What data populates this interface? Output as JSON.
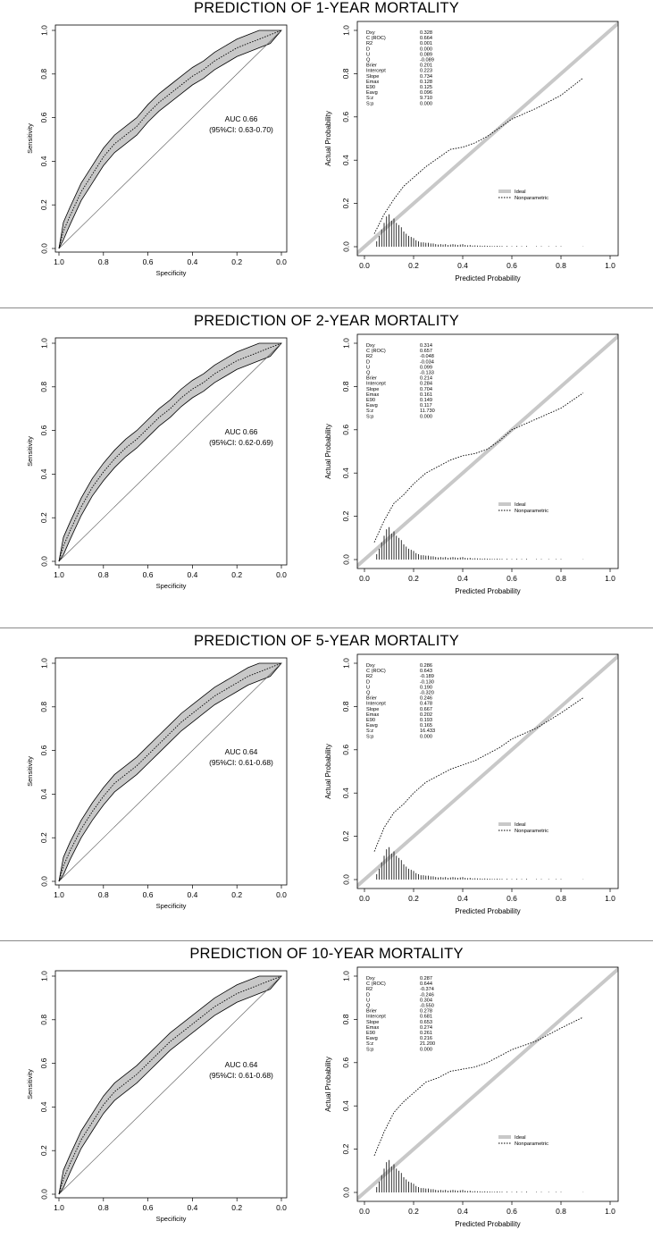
{
  "shared": {
    "roc": {
      "xlabel": "Specificity",
      "ylabel": "Sensitivity",
      "x_ticks": [
        "1.0",
        "0.8",
        "0.6",
        "0.4",
        "0.2",
        "0.0"
      ],
      "y_ticks": [
        "0.0",
        "0.2",
        "0.4",
        "0.6",
        "0.8",
        "1.0"
      ]
    },
    "calibration": {
      "xlabel": "Predicted Probability",
      "ylabel": "Actual Probability",
      "x_ticks": [
        "0.0",
        "0.2",
        "0.4",
        "0.6",
        "0.8",
        "1.0"
      ],
      "y_ticks": [
        "0.0",
        "0.2",
        "0.4",
        "0.6",
        "0.8",
        "1.0"
      ],
      "legend": [
        {
          "label": "Ideal",
          "style": "thick-grey"
        },
        {
          "label": "Nonparametric",
          "style": "dotted"
        }
      ],
      "stat_names": [
        "Dxy",
        "C (ROC)",
        "R2",
        "D",
        "U",
        "Q",
        "Brier",
        "Intercept",
        "Slope",
        "Emax",
        "E90",
        "Eavg",
        "S:z",
        "S:p"
      ],
      "histogram": {
        "x": [
          0.05,
          0.06,
          0.07,
          0.08,
          0.09,
          0.1,
          0.11,
          0.12,
          0.13,
          0.14,
          0.15,
          0.16,
          0.17,
          0.18,
          0.19,
          0.2,
          0.21,
          0.22,
          0.23,
          0.24,
          0.25,
          0.26,
          0.27,
          0.28,
          0.29,
          0.3,
          0.31,
          0.32,
          0.33,
          0.34,
          0.35,
          0.36,
          0.37,
          0.38,
          0.39,
          0.4,
          0.41,
          0.42,
          0.43,
          0.44,
          0.45,
          0.46,
          0.47,
          0.48,
          0.49,
          0.5,
          0.51,
          0.52,
          0.53,
          0.54,
          0.55,
          0.56,
          0.58,
          0.6,
          0.62,
          0.64,
          0.66,
          0.7,
          0.72,
          0.75,
          0.78,
          0.8,
          0.89
        ],
        "h": [
          0.025,
          0.05,
          0.08,
          0.11,
          0.14,
          0.15,
          0.12,
          0.13,
          0.11,
          0.1,
          0.09,
          0.07,
          0.06,
          0.05,
          0.045,
          0.04,
          0.03,
          0.025,
          0.02,
          0.02,
          0.018,
          0.018,
          0.015,
          0.015,
          0.012,
          0.01,
          0.012,
          0.01,
          0.012,
          0.008,
          0.01,
          0.012,
          0.01,
          0.008,
          0.01,
          0.012,
          0.008,
          0.006,
          0.008,
          0.005,
          0.006,
          0.005,
          0.005,
          0.004,
          0.005,
          0.004,
          0.004,
          0.003,
          0.003,
          0.004,
          0.003,
          0.003,
          0.003,
          0.002,
          0.003,
          0.002,
          0.003,
          0.002,
          0.002,
          0.002,
          0.002,
          0.002,
          0.001
        ]
      },
      "colors": {
        "ideal": "#c8c8c8",
        "band": "#c8c8c8"
      }
    }
  },
  "panels": [
    {
      "title": "PREDICTION OF 1-YEAR MORTALITY",
      "auc_text": "AUC 0.66",
      "ci_text": "(95%CI: 0.63-0.70)",
      "stat_values": [
        "0.328",
        "0.664",
        "0.001",
        "0.000",
        "0.089",
        "-0.089",
        "0.201",
        "0.223",
        "0.734",
        "0.128",
        "0.125",
        "0.096",
        "9.710",
        "0.000"
      ],
      "chart_data": {
        "roc": {
          "type": "line",
          "x_fpr": [
            0,
            0.02,
            0.05,
            0.1,
            0.15,
            0.2,
            0.25,
            0.3,
            0.35,
            0.4,
            0.45,
            0.5,
            0.55,
            0.6,
            0.65,
            0.7,
            0.75,
            0.8,
            0.85,
            0.9,
            0.95,
            1.0
          ],
          "tpr": [
            0,
            0.08,
            0.15,
            0.26,
            0.34,
            0.42,
            0.48,
            0.52,
            0.56,
            0.62,
            0.67,
            0.71,
            0.75,
            0.79,
            0.82,
            0.86,
            0.89,
            0.92,
            0.94,
            0.96,
            0.98,
            1.0
          ],
          "band": 0.04
        },
        "calibration": {
          "type": "line",
          "x": [
            0.04,
            0.08,
            0.12,
            0.16,
            0.2,
            0.25,
            0.3,
            0.35,
            0.4,
            0.45,
            0.5,
            0.55,
            0.6,
            0.7,
            0.8,
            0.89
          ],
          "y": [
            0.06,
            0.15,
            0.22,
            0.28,
            0.32,
            0.37,
            0.41,
            0.45,
            0.46,
            0.48,
            0.51,
            0.55,
            0.59,
            0.64,
            0.7,
            0.78
          ]
        }
      }
    },
    {
      "title": "PREDICTION OF 2-YEAR MORTALITY",
      "auc_text": "AUC 0.66",
      "ci_text": "(95%CI: 0.62-0.69)",
      "stat_values": [
        "0.314",
        "0.657",
        "-0.048",
        "-0.034",
        "0.099",
        "-0.133",
        "0.214",
        "0.284",
        "0.704",
        "0.161",
        "0.149",
        "0.117",
        "11.730",
        "0.000"
      ],
      "chart_data": {
        "roc": {
          "type": "line",
          "x_fpr": [
            0,
            0.02,
            0.05,
            0.1,
            0.15,
            0.2,
            0.25,
            0.3,
            0.35,
            0.4,
            0.45,
            0.5,
            0.55,
            0.6,
            0.65,
            0.7,
            0.75,
            0.8,
            0.85,
            0.9,
            0.95,
            1.0
          ],
          "tpr": [
            0,
            0.07,
            0.14,
            0.25,
            0.34,
            0.41,
            0.47,
            0.52,
            0.56,
            0.61,
            0.66,
            0.7,
            0.75,
            0.79,
            0.82,
            0.86,
            0.89,
            0.92,
            0.94,
            0.96,
            0.98,
            1.0
          ],
          "band": 0.04
        },
        "calibration": {
          "type": "line",
          "x": [
            0.04,
            0.08,
            0.12,
            0.16,
            0.2,
            0.25,
            0.3,
            0.35,
            0.4,
            0.45,
            0.5,
            0.55,
            0.6,
            0.7,
            0.8,
            0.89
          ],
          "y": [
            0.08,
            0.18,
            0.26,
            0.3,
            0.35,
            0.4,
            0.43,
            0.46,
            0.48,
            0.49,
            0.51,
            0.55,
            0.6,
            0.65,
            0.7,
            0.77
          ]
        }
      }
    },
    {
      "title": "PREDICTION OF 5-YEAR MORTALITY",
      "auc_text": "AUC 0.64",
      "ci_text": "(95%CI: 0.61-0.68)",
      "stat_values": [
        "0.286",
        "0.643",
        "-0.189",
        "-0.130",
        "0.190",
        "-0.320",
        "0.246",
        "0.478",
        "0.667",
        "0.202",
        "0.193",
        "0.165",
        "16.433",
        "0.000"
      ],
      "chart_data": {
        "roc": {
          "type": "line",
          "x_fpr": [
            0,
            0.02,
            0.05,
            0.1,
            0.15,
            0.2,
            0.25,
            0.3,
            0.35,
            0.4,
            0.45,
            0.5,
            0.55,
            0.6,
            0.65,
            0.7,
            0.75,
            0.8,
            0.85,
            0.9,
            0.95,
            1.0
          ],
          "tpr": [
            0,
            0.07,
            0.14,
            0.24,
            0.32,
            0.39,
            0.45,
            0.49,
            0.53,
            0.58,
            0.63,
            0.68,
            0.73,
            0.77,
            0.81,
            0.85,
            0.88,
            0.91,
            0.94,
            0.96,
            0.98,
            1.0
          ],
          "band": 0.04
        },
        "calibration": {
          "type": "line",
          "x": [
            0.04,
            0.08,
            0.12,
            0.16,
            0.2,
            0.25,
            0.3,
            0.35,
            0.4,
            0.45,
            0.5,
            0.55,
            0.6,
            0.7,
            0.8,
            0.89
          ],
          "y": [
            0.13,
            0.24,
            0.31,
            0.35,
            0.4,
            0.45,
            0.48,
            0.51,
            0.53,
            0.55,
            0.58,
            0.61,
            0.65,
            0.7,
            0.77,
            0.84
          ]
        }
      }
    },
    {
      "title": "PREDICTION OF 10-YEAR MORTALITY",
      "auc_text": "AUC 0.64",
      "ci_text": "(95%CI: 0.61-0.68)",
      "stat_values": [
        "0.287",
        "0.644",
        "-0.374",
        "-0.246",
        "0.304",
        "-0.550",
        "0.278",
        "0.681",
        "0.653",
        "0.274",
        "0.261",
        "0.216",
        "21.200",
        "0.000"
      ],
      "chart_data": {
        "roc": {
          "type": "line",
          "x_fpr": [
            0,
            0.02,
            0.05,
            0.1,
            0.15,
            0.2,
            0.25,
            0.3,
            0.35,
            0.4,
            0.45,
            0.5,
            0.55,
            0.6,
            0.65,
            0.7,
            0.75,
            0.8,
            0.85,
            0.9,
            0.95,
            1.0
          ],
          "tpr": [
            0,
            0.07,
            0.14,
            0.25,
            0.33,
            0.41,
            0.47,
            0.51,
            0.55,
            0.6,
            0.65,
            0.7,
            0.74,
            0.78,
            0.82,
            0.86,
            0.89,
            0.92,
            0.94,
            0.96,
            0.98,
            1.0
          ],
          "band": 0.04
        },
        "calibration": {
          "type": "line",
          "x": [
            0.04,
            0.08,
            0.12,
            0.16,
            0.2,
            0.25,
            0.3,
            0.35,
            0.4,
            0.45,
            0.5,
            0.55,
            0.6,
            0.7,
            0.8,
            0.89
          ],
          "y": [
            0.17,
            0.28,
            0.37,
            0.42,
            0.46,
            0.51,
            0.53,
            0.56,
            0.57,
            0.58,
            0.6,
            0.63,
            0.66,
            0.7,
            0.76,
            0.81
          ]
        }
      }
    }
  ]
}
